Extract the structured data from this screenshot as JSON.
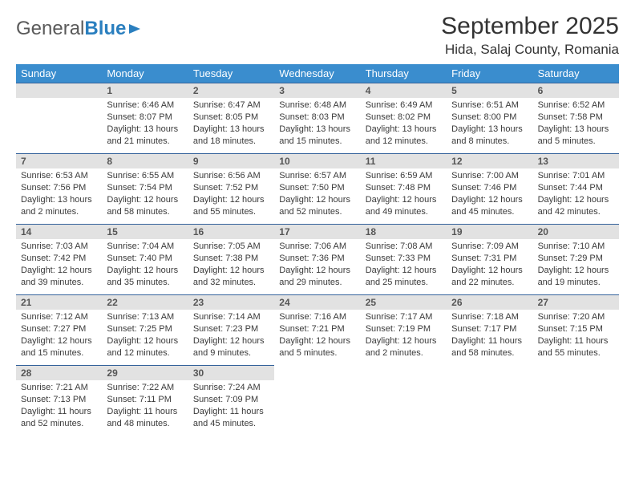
{
  "logo": {
    "part1": "General",
    "part2": "Blue"
  },
  "title": "September 2025",
  "location": "Hida, Salaj County, Romania",
  "dayNames": [
    "Sunday",
    "Monday",
    "Tuesday",
    "Wednesday",
    "Thursday",
    "Friday",
    "Saturday"
  ],
  "colors": {
    "headerBg": "#3a8dce",
    "headerText": "#ffffff",
    "dayNumBg": "#e2e2e2",
    "dayNumText": "#565656",
    "borderTop": "#34629b",
    "bodyText": "#3a3a3a"
  },
  "typography": {
    "title_fontsize": 30,
    "location_fontsize": 17,
    "dayheader_fontsize": 13,
    "daynum_fontsize": 12,
    "info_fontsize": 11
  },
  "weeks": [
    [
      null,
      {
        "n": "1",
        "sunrise": "Sunrise: 6:46 AM",
        "sunset": "Sunset: 8:07 PM",
        "daylight": "Daylight: 13 hours and 21 minutes."
      },
      {
        "n": "2",
        "sunrise": "Sunrise: 6:47 AM",
        "sunset": "Sunset: 8:05 PM",
        "daylight": "Daylight: 13 hours and 18 minutes."
      },
      {
        "n": "3",
        "sunrise": "Sunrise: 6:48 AM",
        "sunset": "Sunset: 8:03 PM",
        "daylight": "Daylight: 13 hours and 15 minutes."
      },
      {
        "n": "4",
        "sunrise": "Sunrise: 6:49 AM",
        "sunset": "Sunset: 8:02 PM",
        "daylight": "Daylight: 13 hours and 12 minutes."
      },
      {
        "n": "5",
        "sunrise": "Sunrise: 6:51 AM",
        "sunset": "Sunset: 8:00 PM",
        "daylight": "Daylight: 13 hours and 8 minutes."
      },
      {
        "n": "6",
        "sunrise": "Sunrise: 6:52 AM",
        "sunset": "Sunset: 7:58 PM",
        "daylight": "Daylight: 13 hours and 5 minutes."
      }
    ],
    [
      {
        "n": "7",
        "sunrise": "Sunrise: 6:53 AM",
        "sunset": "Sunset: 7:56 PM",
        "daylight": "Daylight: 13 hours and 2 minutes."
      },
      {
        "n": "8",
        "sunrise": "Sunrise: 6:55 AM",
        "sunset": "Sunset: 7:54 PM",
        "daylight": "Daylight: 12 hours and 58 minutes."
      },
      {
        "n": "9",
        "sunrise": "Sunrise: 6:56 AM",
        "sunset": "Sunset: 7:52 PM",
        "daylight": "Daylight: 12 hours and 55 minutes."
      },
      {
        "n": "10",
        "sunrise": "Sunrise: 6:57 AM",
        "sunset": "Sunset: 7:50 PM",
        "daylight": "Daylight: 12 hours and 52 minutes."
      },
      {
        "n": "11",
        "sunrise": "Sunrise: 6:59 AM",
        "sunset": "Sunset: 7:48 PM",
        "daylight": "Daylight: 12 hours and 49 minutes."
      },
      {
        "n": "12",
        "sunrise": "Sunrise: 7:00 AM",
        "sunset": "Sunset: 7:46 PM",
        "daylight": "Daylight: 12 hours and 45 minutes."
      },
      {
        "n": "13",
        "sunrise": "Sunrise: 7:01 AM",
        "sunset": "Sunset: 7:44 PM",
        "daylight": "Daylight: 12 hours and 42 minutes."
      }
    ],
    [
      {
        "n": "14",
        "sunrise": "Sunrise: 7:03 AM",
        "sunset": "Sunset: 7:42 PM",
        "daylight": "Daylight: 12 hours and 39 minutes."
      },
      {
        "n": "15",
        "sunrise": "Sunrise: 7:04 AM",
        "sunset": "Sunset: 7:40 PM",
        "daylight": "Daylight: 12 hours and 35 minutes."
      },
      {
        "n": "16",
        "sunrise": "Sunrise: 7:05 AM",
        "sunset": "Sunset: 7:38 PM",
        "daylight": "Daylight: 12 hours and 32 minutes."
      },
      {
        "n": "17",
        "sunrise": "Sunrise: 7:06 AM",
        "sunset": "Sunset: 7:36 PM",
        "daylight": "Daylight: 12 hours and 29 minutes."
      },
      {
        "n": "18",
        "sunrise": "Sunrise: 7:08 AM",
        "sunset": "Sunset: 7:33 PM",
        "daylight": "Daylight: 12 hours and 25 minutes."
      },
      {
        "n": "19",
        "sunrise": "Sunrise: 7:09 AM",
        "sunset": "Sunset: 7:31 PM",
        "daylight": "Daylight: 12 hours and 22 minutes."
      },
      {
        "n": "20",
        "sunrise": "Sunrise: 7:10 AM",
        "sunset": "Sunset: 7:29 PM",
        "daylight": "Daylight: 12 hours and 19 minutes."
      }
    ],
    [
      {
        "n": "21",
        "sunrise": "Sunrise: 7:12 AM",
        "sunset": "Sunset: 7:27 PM",
        "daylight": "Daylight: 12 hours and 15 minutes."
      },
      {
        "n": "22",
        "sunrise": "Sunrise: 7:13 AM",
        "sunset": "Sunset: 7:25 PM",
        "daylight": "Daylight: 12 hours and 12 minutes."
      },
      {
        "n": "23",
        "sunrise": "Sunrise: 7:14 AM",
        "sunset": "Sunset: 7:23 PM",
        "daylight": "Daylight: 12 hours and 9 minutes."
      },
      {
        "n": "24",
        "sunrise": "Sunrise: 7:16 AM",
        "sunset": "Sunset: 7:21 PM",
        "daylight": "Daylight: 12 hours and 5 minutes."
      },
      {
        "n": "25",
        "sunrise": "Sunrise: 7:17 AM",
        "sunset": "Sunset: 7:19 PM",
        "daylight": "Daylight: 12 hours and 2 minutes."
      },
      {
        "n": "26",
        "sunrise": "Sunrise: 7:18 AM",
        "sunset": "Sunset: 7:17 PM",
        "daylight": "Daylight: 11 hours and 58 minutes."
      },
      {
        "n": "27",
        "sunrise": "Sunrise: 7:20 AM",
        "sunset": "Sunset: 7:15 PM",
        "daylight": "Daylight: 11 hours and 55 minutes."
      }
    ],
    [
      {
        "n": "28",
        "sunrise": "Sunrise: 7:21 AM",
        "sunset": "Sunset: 7:13 PM",
        "daylight": "Daylight: 11 hours and 52 minutes."
      },
      {
        "n": "29",
        "sunrise": "Sunrise: 7:22 AM",
        "sunset": "Sunset: 7:11 PM",
        "daylight": "Daylight: 11 hours and 48 minutes."
      },
      {
        "n": "30",
        "sunrise": "Sunrise: 7:24 AM",
        "sunset": "Sunset: 7:09 PM",
        "daylight": "Daylight: 11 hours and 45 minutes."
      },
      null,
      null,
      null,
      null
    ]
  ]
}
